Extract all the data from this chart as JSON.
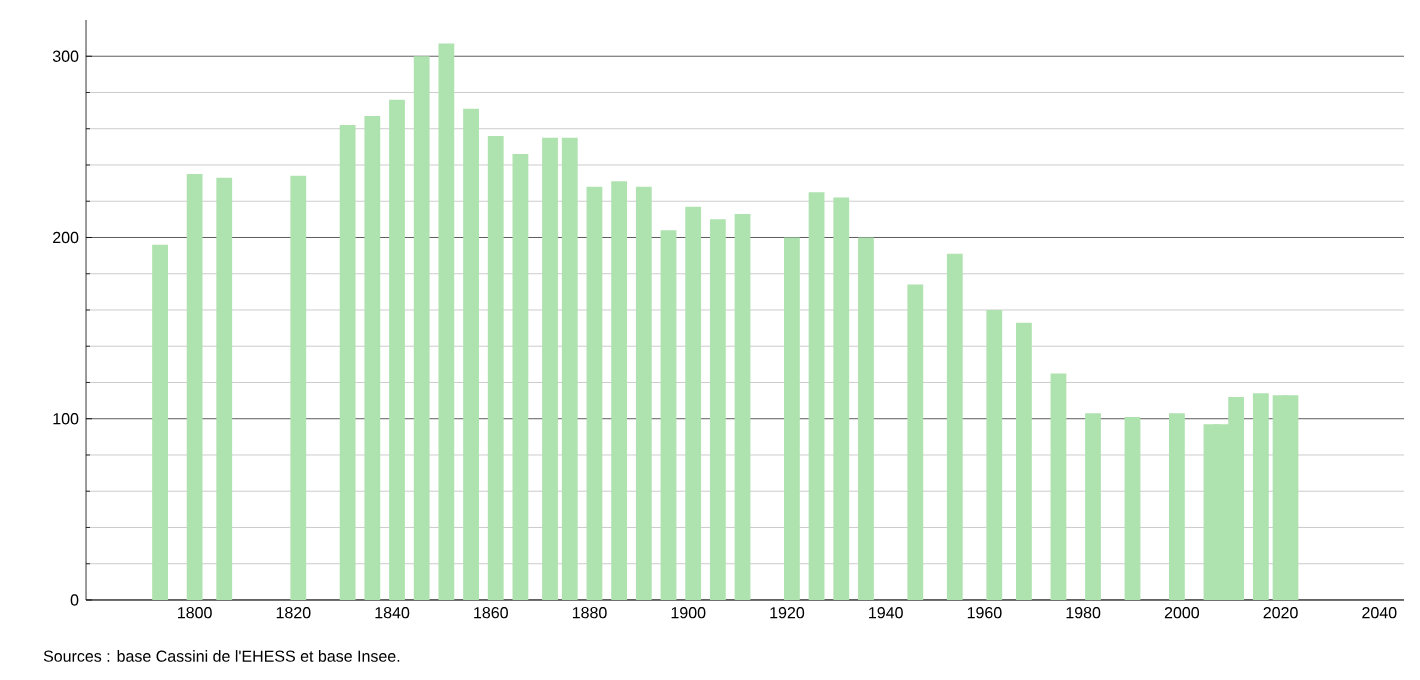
{
  "chart_data": {
    "type": "bar",
    "x": [
      1793,
      1800,
      1806,
      1821,
      1831,
      1836,
      1841,
      1846,
      1851,
      1856,
      1861,
      1866,
      1872,
      1876,
      1881,
      1886,
      1891,
      1896,
      1901,
      1906,
      1911,
      1921,
      1926,
      1931,
      1936,
      1946,
      1954,
      1962,
      1968,
      1975,
      1982,
      1990,
      1999,
      2006,
      2008,
      2011,
      2016,
      2020,
      2022
    ],
    "series": [
      {
        "color": "#aee2ae",
        "values": [
          196,
          235,
          233,
          234,
          262,
          267,
          276,
          300,
          307,
          271,
          256,
          246,
          255,
          255,
          228,
          231,
          228,
          204,
          217,
          210,
          213,
          200,
          225,
          222,
          200,
          174,
          191,
          160,
          153,
          125,
          103,
          101,
          103,
          97,
          97,
          112,
          114,
          113,
          113
        ]
      }
    ],
    "xlim": [
      1778,
      2045
    ],
    "xticks": [
      1800,
      1820,
      1840,
      1860,
      1880,
      1900,
      1920,
      1940,
      1960,
      1980,
      2000,
      2020,
      2040
    ],
    "ylim": [
      0,
      320
    ],
    "yticks": [
      0,
      {
        "value": 20,
        "label": null
      },
      {
        "value": 40,
        "label": null
      },
      {
        "value": 60,
        "label": null
      },
      {
        "value": 80,
        "label": null
      },
      100,
      {
        "value": 120,
        "label": null
      },
      {
        "value": 140,
        "label": null
      },
      {
        "value": 160,
        "label": null
      },
      {
        "value": 180,
        "label": null
      },
      200,
      {
        "value": 220,
        "label": null
      },
      {
        "value": 240,
        "label": null
      },
      {
        "value": 260,
        "label": null
      },
      {
        "value": 280,
        "label": null
      },
      300
    ],
    "grid": "y",
    "annotations": [
      "Sources : base Cassini de l'EHESS et base Insee."
    ]
  }
}
